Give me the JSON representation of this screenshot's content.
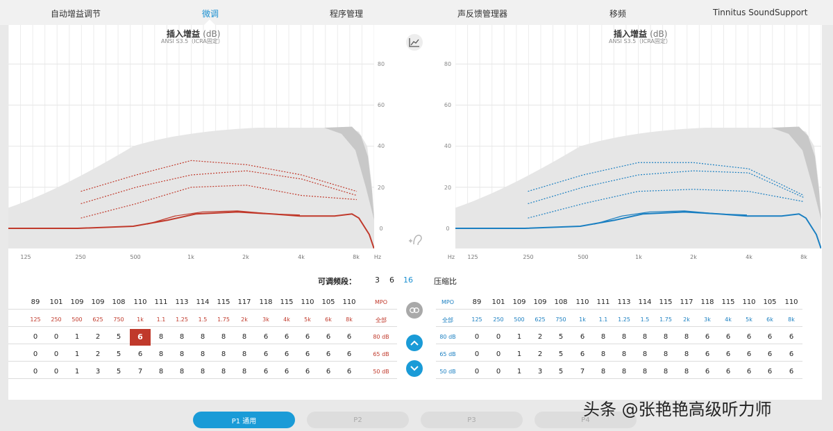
{
  "tabs": [
    {
      "label": "自动增益调节",
      "active": false
    },
    {
      "label": "微调",
      "active": true
    },
    {
      "label": "程序管理",
      "active": false
    },
    {
      "label": "声反馈管理器",
      "active": false
    },
    {
      "label": "移频",
      "active": false
    },
    {
      "label": "Tinnitus SoundSupport",
      "active": false
    }
  ],
  "graph": {
    "title": "插入增益",
    "unit": "(dB)",
    "subtitle": "ANSI S3.5（ICRA固定）",
    "y_ticks": [
      "80",
      "60",
      "40",
      "20",
      "0"
    ],
    "x_ticks": [
      "125",
      "250",
      "500",
      "1k",
      "2k",
      "4k",
      "8k"
    ],
    "x_unit": "Hz"
  },
  "bands": {
    "label": "可调频段：",
    "options": [
      "3",
      "6",
      "16"
    ],
    "selected": "16",
    "compression": "压缩比"
  },
  "left_table": {
    "mpo": [
      "89",
      "101",
      "109",
      "109",
      "108",
      "110",
      "111",
      "113",
      "114",
      "115",
      "117",
      "118",
      "115",
      "110",
      "105",
      "110"
    ],
    "mpo_label": "MPO",
    "freqs": [
      "125",
      "250",
      "500",
      "625",
      "750",
      "1k",
      "1.1",
      "1.25",
      "1.5",
      "1.75",
      "2k",
      "3k",
      "4k",
      "5k",
      "6k",
      "8k"
    ],
    "freqs_label": "全部",
    "rows": [
      {
        "label": "80 dB",
        "values": [
          "0",
          "0",
          "1",
          "2",
          "5",
          "6",
          "8",
          "8",
          "8",
          "8",
          "8",
          "6",
          "6",
          "6",
          "6",
          "6"
        ]
      },
      {
        "label": "65 dB",
        "values": [
          "0",
          "0",
          "1",
          "2",
          "5",
          "6",
          "8",
          "8",
          "8",
          "8",
          "8",
          "6",
          "6",
          "6",
          "6",
          "6"
        ]
      },
      {
        "label": "50 dB",
        "values": [
          "0",
          "0",
          "1",
          "3",
          "5",
          "7",
          "8",
          "8",
          "8",
          "8",
          "8",
          "6",
          "6",
          "6",
          "6",
          "6"
        ]
      }
    ],
    "selected_cell": "80dB@1k"
  },
  "right_table": {
    "mpo": [
      "89",
      "101",
      "109",
      "109",
      "108",
      "110",
      "111",
      "113",
      "114",
      "115",
      "117",
      "118",
      "115",
      "110",
      "105",
      "110"
    ],
    "mpo_label": "MPO",
    "freqs": [
      "125",
      "250",
      "500",
      "625",
      "750",
      "1k",
      "1.1",
      "1.25",
      "1.5",
      "1.75",
      "2k",
      "3k",
      "4k",
      "5k",
      "6k",
      "8k"
    ],
    "freqs_label": "全部",
    "rows": [
      {
        "label": "80 dB",
        "values": [
          "0",
          "0",
          "1",
          "2",
          "5",
          "6",
          "8",
          "8",
          "8",
          "8",
          "8",
          "6",
          "6",
          "6",
          "6",
          "6"
        ]
      },
      {
        "label": "65 dB",
        "values": [
          "0",
          "0",
          "1",
          "2",
          "5",
          "6",
          "8",
          "8",
          "8",
          "8",
          "8",
          "6",
          "6",
          "6",
          "6",
          "6"
        ]
      },
      {
        "label": "50 dB",
        "values": [
          "0",
          "0",
          "1",
          "3",
          "5",
          "7",
          "8",
          "8",
          "8",
          "8",
          "8",
          "6",
          "6",
          "6",
          "6",
          "6"
        ]
      }
    ]
  },
  "programs": [
    {
      "label": "P1 通用",
      "active": true
    },
    {
      "label": "P2",
      "active": false
    },
    {
      "label": "P3",
      "active": false
    },
    {
      "label": "P4",
      "active": false
    }
  ],
  "watermark": "头条 @张艳艳高级听力师",
  "colors": {
    "left": "#c0392b",
    "right": "#1a7fc1",
    "accent": "#1a9bd7"
  },
  "icons": [
    "graph-icon",
    "link-icon",
    "chevron-up-icon",
    "chevron-down-icon",
    "ear-feedback-icon"
  ],
  "chart_data": [
    {
      "type": "line",
      "title": "插入增益 (dB)",
      "subtitle": "ANSI S3.5（ICRA固定）",
      "xlabel": "Hz",
      "x": [
        125,
        250,
        500,
        1000,
        2000,
        4000,
        8000
      ],
      "ylim": [
        0,
        80
      ],
      "series": [
        {
          "values": [
            0,
            0,
            1,
            6,
            8,
            6,
            6
          ]
        },
        {
          "values": [
            4,
            5,
            12,
            20,
            21,
            16,
            14
          ]
        },
        {
          "values": [
            10,
            12,
            20,
            26,
            28,
            24,
            16
          ]
        },
        {
          "values": [
            14,
            18,
            26,
            33,
            31,
            26,
            18
          ]
        }
      ]
    },
    {
      "type": "line",
      "title": "插入增益 (dB)",
      "subtitle": "ANSI S3.5（ICRA固定）",
      "xlabel": "Hz",
      "x": [
        125,
        250,
        500,
        1000,
        2000,
        4000,
        8000
      ],
      "ylim": [
        0,
        80
      ],
      "series": [
        {
          "values": [
            0,
            0,
            1,
            6,
            8,
            6,
            6
          ]
        },
        {
          "values": [
            4,
            5,
            12,
            18,
            19,
            18,
            13
          ]
        },
        {
          "values": [
            10,
            12,
            20,
            26,
            28,
            27,
            15
          ]
        },
        {
          "values": [
            14,
            18,
            26,
            32,
            32,
            29,
            16
          ]
        }
      ]
    }
  ]
}
